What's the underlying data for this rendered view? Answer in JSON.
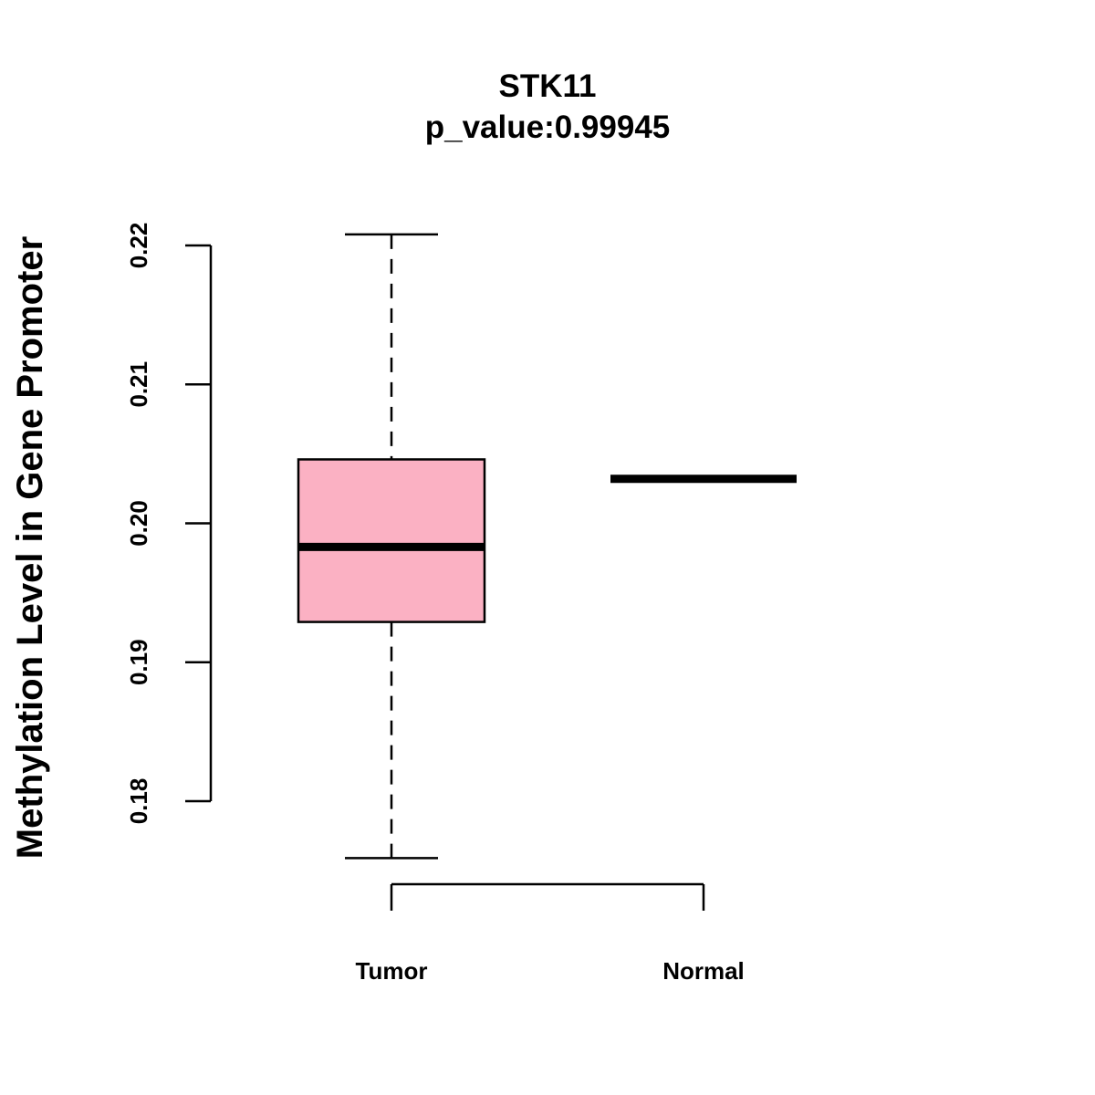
{
  "chart_data": {
    "type": "box",
    "title": "STK11",
    "subtitle": "p_value:0.99945",
    "xlabel": "",
    "ylabel": "Methylation Level in Gene Promoter",
    "ylim": [
      0.18,
      0.22
    ],
    "yticks": [
      "0.18",
      "0.19",
      "0.20",
      "0.21",
      "0.22"
    ],
    "categories": [
      "Tumor",
      "Normal"
    ],
    "series": [
      {
        "category": "Tumor",
        "min": 0.1759,
        "q1": 0.1929,
        "median": 0.1983,
        "q3": 0.2046,
        "max": 0.2208,
        "fill": "#FBB1C3"
      },
      {
        "category": "Normal",
        "min": 0.2032,
        "q1": 0.2032,
        "median": 0.2032,
        "q3": 0.2032,
        "max": 0.2032,
        "fill": "#FBB1C3"
      }
    ],
    "grid": false,
    "legend": "none"
  }
}
